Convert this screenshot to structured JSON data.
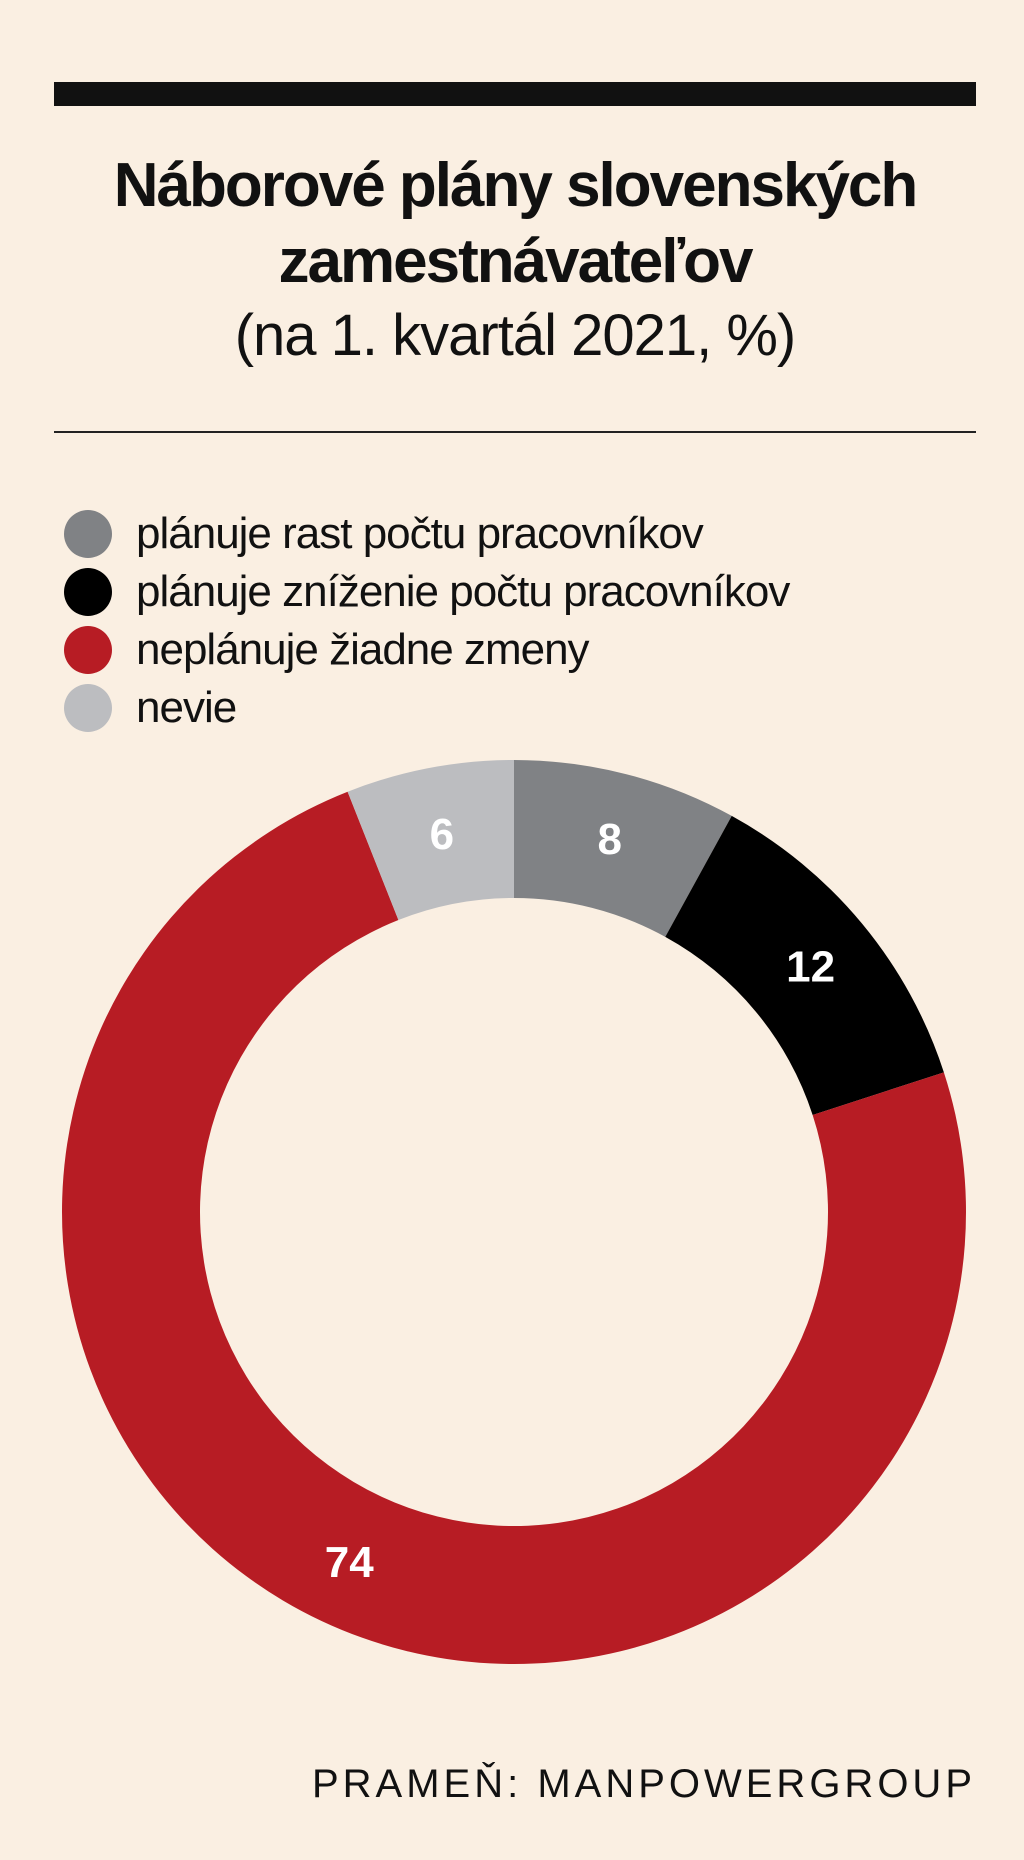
{
  "chart_data": {
    "type": "pie",
    "title": "Náborové plány slovenských zamestnávateľov",
    "subtitle": "(na 1. kvartál 2021, %)",
    "categories": [
      "plánuje rast počtu pracovníkov",
      "plánuje zníženie počtu pracovníkov",
      "neplánuje žiadne zmeny",
      "nevie"
    ],
    "values": [
      8,
      12,
      74,
      6
    ],
    "colors": [
      "#808285",
      "#000000",
      "#B71C24",
      "#BCBDC0"
    ],
    "legend": "top-left"
  },
  "header": {
    "title_line1": "Náborové plány slovenských",
    "title_line2": "zamestnávateľov",
    "subtitle": "(na 1. kvartál 2021, %)"
  },
  "source": "PRAMEŇ: MANPOWERGROUP"
}
